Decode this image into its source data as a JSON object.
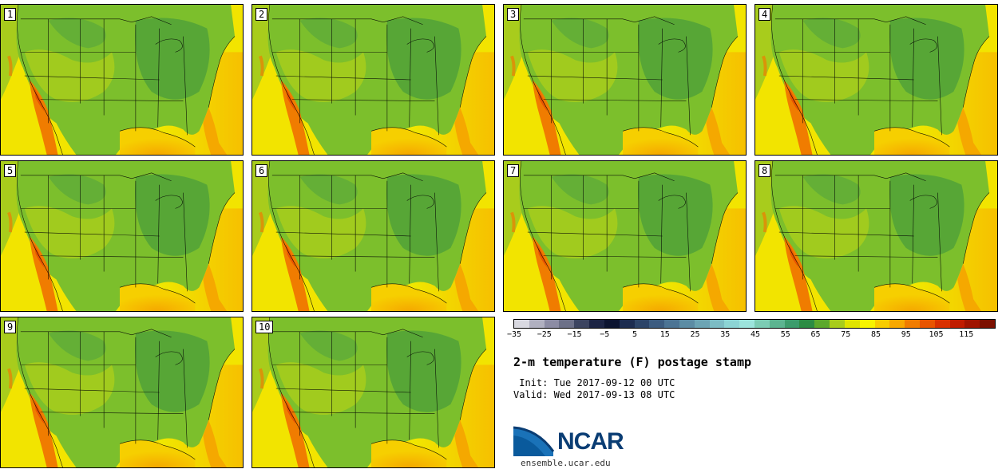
{
  "panels": [
    "1",
    "2",
    "3",
    "4",
    "5",
    "6",
    "7",
    "8",
    "9",
    "10"
  ],
  "colorbar": {
    "colors": [
      "#d8d8e0",
      "#b0b0c0",
      "#8c8ca4",
      "#6c7088",
      "#3c4460",
      "#1c2444",
      "#0c1430",
      "#1c2c50",
      "#2c4468",
      "#3c5c80",
      "#4c7494",
      "#5c8ca4",
      "#6ca4b4",
      "#7cbcc4",
      "#8cd4d4",
      "#9ce4dc",
      "#7cccb4",
      "#5cb490",
      "#3c9c6c",
      "#2c8c44",
      "#5ca82c",
      "#a8cc1c",
      "#e0e400",
      "#f8f400",
      "#f8cc00",
      "#f8a800",
      "#f07c00",
      "#e85400",
      "#d83000",
      "#c01c00",
      "#a01400",
      "#7c1000"
    ],
    "tick_labels": [
      "−35",
      "−25",
      "−15",
      "−5",
      "5",
      "15",
      "25",
      "35",
      "45",
      "55",
      "65",
      "75",
      "85",
      "95",
      "105",
      "115"
    ]
  },
  "title": "2-m temperature (F) postage stamp",
  "init": " Init: Tue 2017-09-12 00 UTC",
  "valid": "Valid: Wed 2017-09-13 08 UTC",
  "logo": {
    "text": "NCAR",
    "url": "ensemble.ucar.edu"
  }
}
